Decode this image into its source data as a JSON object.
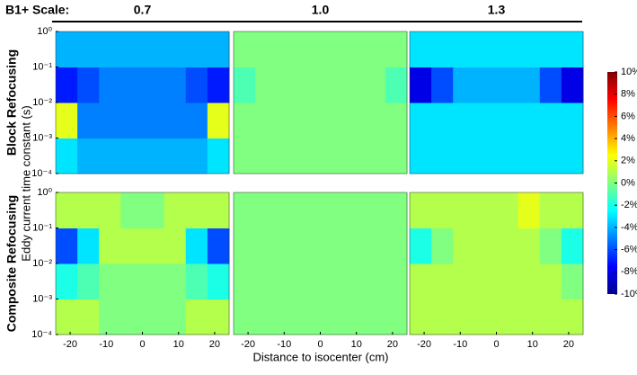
{
  "chart_data": {
    "type": "heatmap",
    "column_header": "B1+ Scale:",
    "columns": [
      "0.7",
      "1.0",
      "1.3"
    ],
    "rows": [
      "Block Refocusing",
      "Composite Refocusing"
    ],
    "ylabel": "Eddy current time constant (s)",
    "xlabel": "Distance to isocenter (cm)",
    "xbins": [
      -24,
      -18,
      -12,
      -6,
      0,
      6,
      12,
      18,
      24
    ],
    "ybins": [
      0.0001,
      0.001,
      0.01,
      0.1,
      1
    ],
    "xlim": [
      -24,
      24
    ],
    "xticks": [
      -20,
      -10,
      0,
      10,
      20
    ],
    "ylim": [
      0.0001,
      1
    ],
    "yticks": [
      {
        "value": 1,
        "label": "10⁰"
      },
      {
        "value": 0.1,
        "label": "10⁻¹"
      },
      {
        "value": 0.01,
        "label": "10⁻²"
      },
      {
        "value": 0.001,
        "label": "10⁻³"
      },
      {
        "value": 0.0001,
        "label": "10⁻⁴"
      }
    ],
    "log_y": true,
    "colormap": "jet",
    "clim": [
      -10,
      10
    ],
    "cticks": [
      {
        "value": 10,
        "label": "10%"
      },
      {
        "value": 8,
        "label": "8%"
      },
      {
        "value": 6,
        "label": "6%"
      },
      {
        "value": 4,
        "label": "4%"
      },
      {
        "value": 2,
        "label": "2%"
      },
      {
        "value": 0,
        "label": "0%"
      },
      {
        "value": -2,
        "label": "-2%"
      },
      {
        "value": -4,
        "label": "-4%"
      },
      {
        "value": -6,
        "label": "-6%"
      },
      {
        "value": -8,
        "label": "-8%"
      },
      {
        "value": -10,
        "label": "-10%"
      }
    ],
    "values": [
      [
        [
          [
            -3,
            -4,
            -4,
            -4,
            -4,
            -4,
            -4,
            -3
          ],
          [
            2,
            -5,
            -5,
            -5,
            -5,
            -5,
            -5,
            2
          ],
          [
            -7,
            -6,
            -5,
            -5,
            -5,
            -5,
            -6,
            -7
          ],
          [
            -4,
            -4,
            -4,
            -4,
            -4,
            -4,
            -4,
            -4
          ]
        ],
        [
          [
            0,
            0,
            0,
            0,
            0,
            0,
            0,
            0
          ],
          [
            0,
            0,
            0,
            0,
            0,
            0,
            0,
            0
          ],
          [
            -1,
            0,
            0,
            0,
            0,
            0,
            0,
            -1
          ],
          [
            0,
            0,
            0,
            0,
            0,
            0,
            0,
            0
          ]
        ],
        [
          [
            -3,
            -3,
            -3,
            -3,
            -3,
            -3,
            -3,
            -3
          ],
          [
            -3,
            -3,
            -3,
            -3,
            -3,
            -3,
            -3,
            -3
          ],
          [
            -8,
            -6,
            -4,
            -4,
            -4,
            -4,
            -6,
            -8
          ],
          [
            -3,
            -3,
            -3,
            -3,
            -3,
            -3,
            -3,
            -3
          ]
        ]
      ],
      [
        [
          [
            1,
            1,
            0,
            0,
            0,
            0,
            1,
            1
          ],
          [
            -2,
            -1,
            0,
            0,
            0,
            0,
            -1,
            -2
          ],
          [
            -6,
            -3,
            1,
            1,
            1,
            1,
            -3,
            -6
          ],
          [
            1,
            1,
            1,
            0,
            0,
            1,
            1,
            1
          ]
        ],
        [
          [
            0,
            0,
            0,
            0,
            0,
            0,
            0,
            0
          ],
          [
            0,
            0,
            0,
            0,
            0,
            0,
            0,
            0
          ],
          [
            0,
            0,
            0,
            0,
            0,
            0,
            0,
            0
          ],
          [
            0,
            0,
            0,
            0,
            0,
            0,
            0,
            0
          ]
        ],
        [
          [
            1,
            1,
            1,
            1,
            1,
            1,
            1,
            1
          ],
          [
            1,
            1,
            1,
            1,
            1,
            1,
            1,
            0
          ],
          [
            -2,
            0,
            1,
            1,
            1,
            1,
            0,
            -2
          ],
          [
            1,
            1,
            1,
            1,
            1,
            2,
            1,
            1
          ]
        ]
      ]
    ]
  }
}
